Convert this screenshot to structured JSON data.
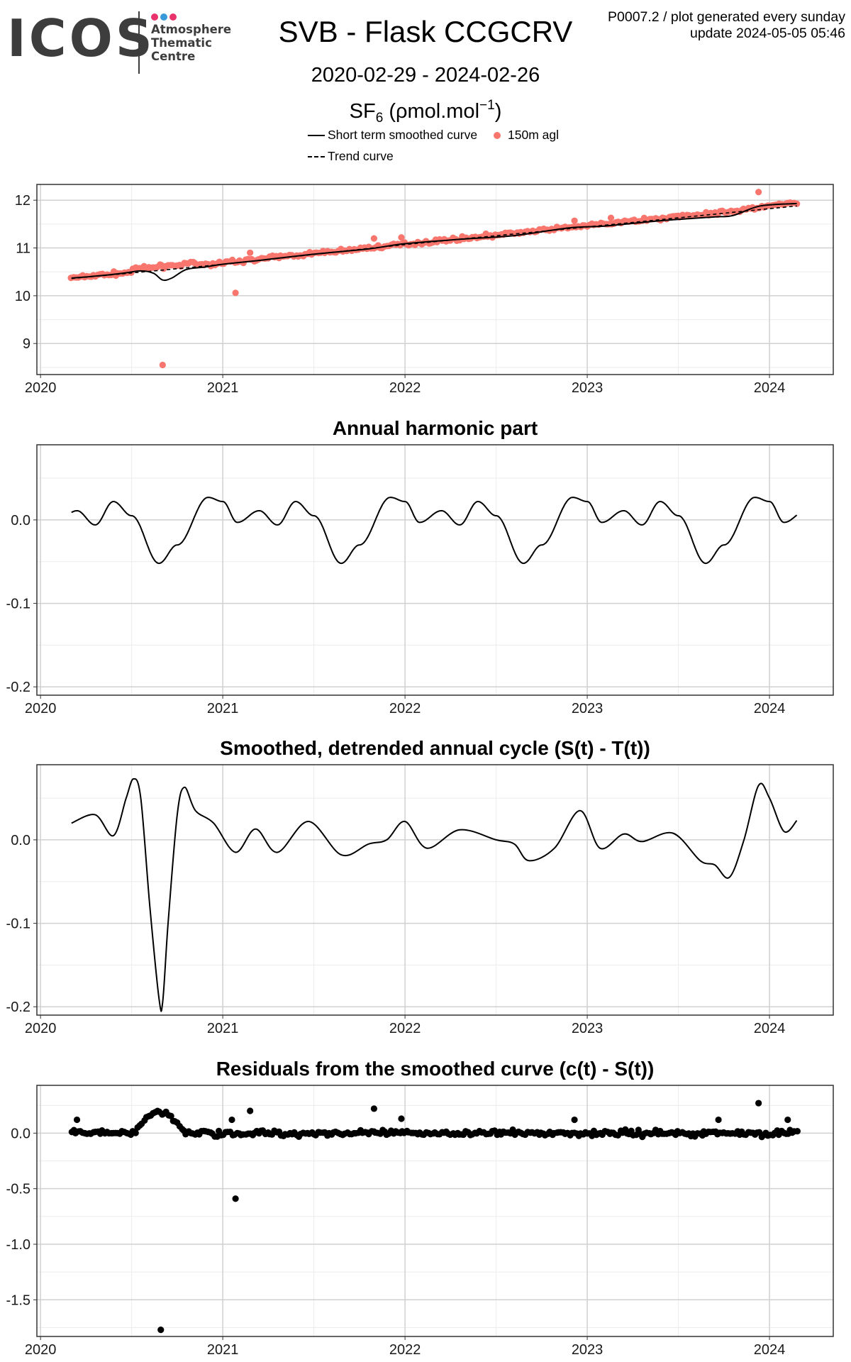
{
  "header": {
    "logo_text": "ICOS",
    "logo_sub": [
      "Atmosphere",
      "Thematic",
      "Centre"
    ],
    "logo_dot_colors": [
      "#e8336c",
      "#3a9ad9",
      "#e8336c"
    ],
    "title": "SVB - Flask CCGCRV",
    "date_range": "2020-02-29 - 2024-02-26",
    "species": "SF",
    "species_sub": "6",
    "unit_open": " (ρmol.mol",
    "unit_sup": "−1",
    "unit_close": ")",
    "meta_line1": "P0007.2 / plot generated every sunday",
    "meta_line2": "update  2024-05-05 05:46"
  },
  "legend": {
    "smoothed_label": "Short term smoothed curve",
    "trend_label": "Trend curve",
    "points_label": "150m agl",
    "point_color": "#f8766d"
  },
  "chart_data": [
    {
      "type": "scatter",
      "title": "",
      "x_axis": {
        "label": "",
        "ticks": [
          2020,
          2021,
          2022,
          2023,
          2024
        ],
        "tick_labels": [
          "2020",
          "2021",
          "2022",
          "2023",
          "2024"
        ],
        "range": [
          2019.98,
          2024.35
        ]
      },
      "y_axis": {
        "label": "",
        "ticks": [
          9,
          10,
          11,
          12
        ],
        "tick_labels": [
          "9",
          "10",
          "11",
          "12"
        ],
        "range": [
          8.35,
          12.33
        ]
      },
      "grid": true,
      "legend": "top",
      "series": [
        {
          "name": "150m agl",
          "kind": "points",
          "color": "#f8766d",
          "trend": {
            "start": [
              2020.17,
              10.37
            ],
            "end": [
              2024.15,
              11.91
            ],
            "jitter": 0.035
          },
          "outliers": [
            [
              2020.67,
              8.55
            ],
            [
              2021.07,
              10.06
            ],
            [
              2023.94,
              12.17
            ],
            [
              2021.15,
              10.9
            ],
            [
              2021.83,
              11.2
            ],
            [
              2021.98,
              11.22
            ],
            [
              2022.93,
              11.57
            ],
            [
              2023.13,
              11.63
            ]
          ]
        },
        {
          "name": "Short term smoothed curve",
          "kind": "line",
          "color": "#000000",
          "points": [
            [
              2020.17,
              10.37
            ],
            [
              2020.3,
              10.41
            ],
            [
              2020.45,
              10.47
            ],
            [
              2020.55,
              10.52
            ],
            [
              2020.62,
              10.47
            ],
            [
              2020.67,
              10.33
            ],
            [
              2020.72,
              10.37
            ],
            [
              2020.8,
              10.55
            ],
            [
              2020.9,
              10.6
            ],
            [
              2021.0,
              10.66
            ],
            [
              2021.2,
              10.74
            ],
            [
              2021.5,
              10.87
            ],
            [
              2021.8,
              10.98
            ],
            [
              2022.0,
              11.09
            ],
            [
              2022.3,
              11.18
            ],
            [
              2022.6,
              11.26
            ],
            [
              2022.9,
              11.42
            ],
            [
              2023.1,
              11.46
            ],
            [
              2023.4,
              11.57
            ],
            [
              2023.7,
              11.65
            ],
            [
              2023.8,
              11.68
            ],
            [
              2023.95,
              11.88
            ],
            [
              2024.15,
              11.93
            ]
          ]
        },
        {
          "name": "Trend curve",
          "kind": "dashed-line",
          "color": "#000000",
          "points": [
            [
              2020.17,
              10.36
            ],
            [
              2021.0,
              10.66
            ],
            [
              2022.0,
              11.07
            ],
            [
              2023.0,
              11.44
            ],
            [
              2024.15,
              11.88
            ]
          ]
        }
      ]
    },
    {
      "type": "line",
      "title": "Annual harmonic part",
      "x_axis": {
        "label": "",
        "ticks": [
          2020,
          2021,
          2022,
          2023,
          2024
        ],
        "tick_labels": [
          "2020",
          "2021",
          "2022",
          "2023",
          "2024"
        ],
        "range": [
          2019.98,
          2024.35
        ]
      },
      "y_axis": {
        "label": "",
        "ticks": [
          0.0,
          -0.1,
          -0.2
        ],
        "tick_labels": [
          "0.0",
          "-0.1",
          "-0.2"
        ],
        "range": [
          -0.21,
          0.09
        ]
      },
      "grid": true,
      "series": [
        {
          "name": "",
          "kind": "line",
          "color": "#000000",
          "annual_cycle": [
            [
              0.0,
              0.022
            ],
            [
              0.08,
              -0.003
            ],
            [
              0.2,
              0.011
            ],
            [
              0.3,
              -0.006
            ],
            [
              0.4,
              0.022
            ],
            [
              0.5,
              0.005
            ],
            [
              0.65,
              -0.052
            ],
            [
              0.75,
              -0.03
            ],
            [
              0.92,
              0.027
            ],
            [
              1.0,
              0.022
            ]
          ],
          "x_range": [
            2020.17,
            2024.15
          ]
        }
      ]
    },
    {
      "type": "line",
      "title": "Smoothed, detrended annual cycle (S(t) - T(t))",
      "x_axis": {
        "label": "",
        "ticks": [
          2020,
          2021,
          2022,
          2023,
          2024
        ],
        "tick_labels": [
          "2020",
          "2021",
          "2022",
          "2023",
          "2024"
        ],
        "range": [
          2019.98,
          2024.35
        ]
      },
      "y_axis": {
        "label": "",
        "ticks": [
          0.0,
          -0.1,
          -0.2
        ],
        "tick_labels": [
          "0.0",
          "-0.1",
          "-0.2"
        ],
        "range": [
          -0.21,
          0.09
        ]
      },
      "grid": true,
      "series": [
        {
          "name": "",
          "kind": "line",
          "color": "#000000",
          "points": [
            [
              2020.17,
              0.02
            ],
            [
              2020.3,
              0.03
            ],
            [
              2020.4,
              0.005
            ],
            [
              2020.47,
              0.05
            ],
            [
              2020.51,
              0.073
            ],
            [
              2020.55,
              0.05
            ],
            [
              2020.6,
              -0.08
            ],
            [
              2020.65,
              -0.19
            ],
            [
              2020.67,
              -0.195
            ],
            [
              2020.7,
              -0.1
            ],
            [
              2020.75,
              0.03
            ],
            [
              2020.79,
              0.063
            ],
            [
              2020.85,
              0.035
            ],
            [
              2020.95,
              0.02
            ],
            [
              2021.07,
              -0.015
            ],
            [
              2021.18,
              0.013
            ],
            [
              2021.3,
              -0.015
            ],
            [
              2021.47,
              0.022
            ],
            [
              2021.65,
              -0.018
            ],
            [
              2021.8,
              -0.005
            ],
            [
              2021.9,
              0.0
            ],
            [
              2022.0,
              0.022
            ],
            [
              2022.12,
              -0.01
            ],
            [
              2022.3,
              0.012
            ],
            [
              2022.5,
              0.0
            ],
            [
              2022.6,
              -0.005
            ],
            [
              2022.68,
              -0.025
            ],
            [
              2022.82,
              -0.01
            ],
            [
              2022.96,
              0.035
            ],
            [
              2023.07,
              -0.01
            ],
            [
              2023.2,
              0.007
            ],
            [
              2023.3,
              -0.002
            ],
            [
              2023.47,
              0.008
            ],
            [
              2023.62,
              -0.025
            ],
            [
              2023.7,
              -0.03
            ],
            [
              2023.78,
              -0.045
            ],
            [
              2023.86,
              0.0
            ],
            [
              2023.94,
              0.065
            ],
            [
              2024.0,
              0.05
            ],
            [
              2024.08,
              0.01
            ],
            [
              2024.15,
              0.023
            ]
          ]
        }
      ]
    },
    {
      "type": "scatter",
      "title": "Residuals from the smoothed curve (c(t) - S(t))",
      "x_axis": {
        "label": "",
        "ticks": [
          2020,
          2021,
          2022,
          2023,
          2024
        ],
        "tick_labels": [
          "2020",
          "2021",
          "2022",
          "2023",
          "2024"
        ],
        "range": [
          2019.98,
          2024.35
        ]
      },
      "y_axis": {
        "label": "",
        "ticks": [
          0.0,
          -0.5,
          -1.0,
          -1.5
        ],
        "tick_labels": [
          "0.0",
          "-0.5",
          "-1.0",
          "-1.5"
        ],
        "range": [
          -1.83,
          0.43
        ]
      },
      "grid": true,
      "series": [
        {
          "name": "",
          "kind": "points",
          "color": "#000000",
          "base": {
            "range": [
              2020.17,
              2024.15
            ],
            "jitter": 0.025
          },
          "bumps": [
            [
              2020.5,
              2020.8,
              0.18
            ]
          ],
          "outliers": [
            [
              2020.66,
              -1.77
            ],
            [
              2021.07,
              -0.59
            ],
            [
              2021.15,
              0.2
            ],
            [
              2021.83,
              0.22
            ],
            [
              2021.98,
              0.13
            ],
            [
              2023.94,
              0.27
            ],
            [
              2020.2,
              0.12
            ],
            [
              2021.05,
              0.12
            ],
            [
              2023.72,
              0.12
            ],
            [
              2024.1,
              0.12
            ],
            [
              2022.93,
              0.12
            ]
          ]
        }
      ]
    }
  ]
}
